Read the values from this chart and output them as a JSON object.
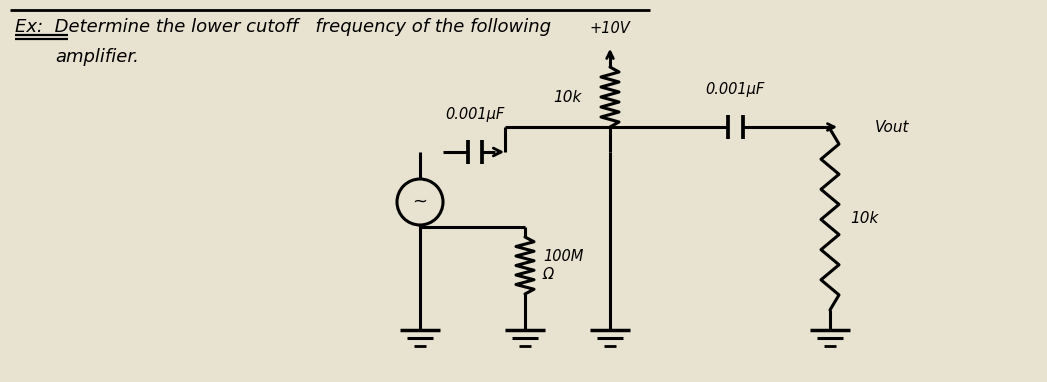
{
  "bg_color": "#e8e2d0",
  "title_line1": "Ex:  Determine the lower cutoff",
  "title_line1b": "frequency of the following",
  "title_line2": "        amplifier.",
  "top_label": "+10V",
  "r1_label": "10k",
  "c_input_label": "0.001μF",
  "c_output_label": "0.001μF",
  "vout_label": "Vout",
  "r_source_label": "100M\nΩ",
  "r_load_label": "10k",
  "fig_width": 10.47,
  "fig_height": 3.82,
  "dpi": 100,
  "lw": 2.2
}
